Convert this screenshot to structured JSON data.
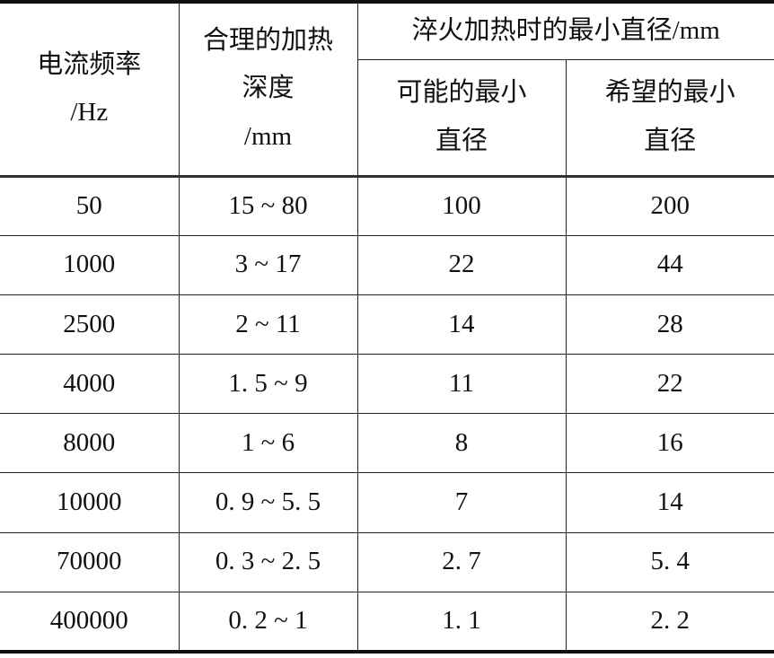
{
  "table": {
    "headers": {
      "frequency": [
        "电流频率",
        "/Hz"
      ],
      "depth": [
        "合理的加热",
        "深度",
        "/mm"
      ],
      "group": "淬火加热时的最小直径/mm",
      "possible": [
        "可能的最小",
        "直径"
      ],
      "desired": [
        "希望的最小",
        "直径"
      ]
    },
    "rows": [
      [
        "50",
        "15 ~ 80",
        "100",
        "200"
      ],
      [
        "1000",
        "3 ~ 17",
        "22",
        "44"
      ],
      [
        "2500",
        "2 ~ 11",
        "14",
        "28"
      ],
      [
        "4000",
        "1. 5 ~ 9",
        "11",
        "22"
      ],
      [
        "8000",
        "1 ~ 6",
        "8",
        "16"
      ],
      [
        "10000",
        "0. 9 ~ 5. 5",
        "7",
        "14"
      ],
      [
        "70000",
        "0. 3 ~ 2. 5",
        "2. 7",
        "5. 4"
      ],
      [
        "400000",
        "0. 2 ~ 1",
        "1. 1",
        "2. 2"
      ]
    ]
  }
}
